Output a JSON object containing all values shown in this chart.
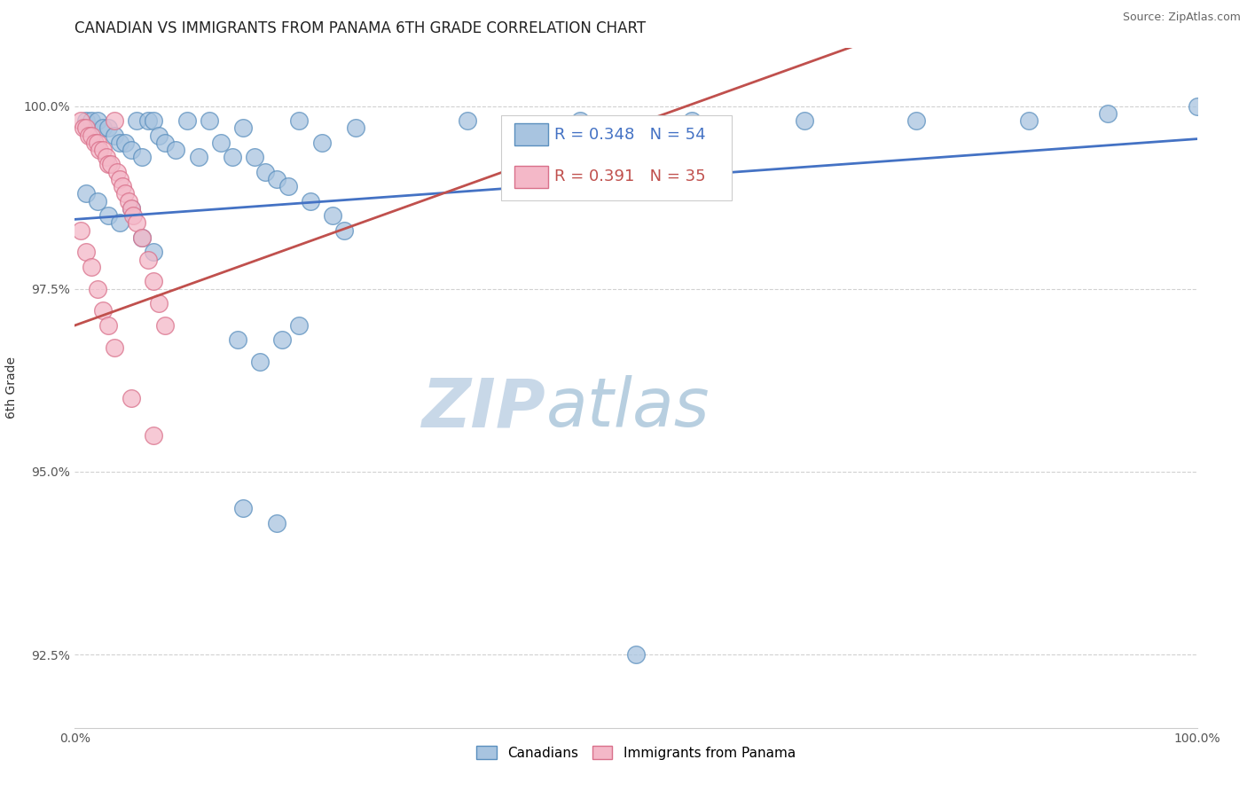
{
  "title": "CANADIAN VS IMMIGRANTS FROM PANAMA 6TH GRADE CORRELATION CHART",
  "source_text": "Source: ZipAtlas.com",
  "ylabel": "6th Grade",
  "watermark_zip": "ZIP",
  "watermark_atlas": "atlas",
  "xlim": [
    0.0,
    100.0
  ],
  "ylim": [
    91.5,
    100.8
  ],
  "yticks": [
    92.5,
    95.0,
    97.5,
    100.0
  ],
  "xticks": [
    0.0,
    100.0
  ],
  "xtick_labels": [
    "0.0%",
    "100.0%"
  ],
  "ytick_labels": [
    "92.5%",
    "95.0%",
    "97.5%",
    "100.0%"
  ],
  "canadian_color": "#a8c4e0",
  "canadian_edge_color": "#5a8fbe",
  "panama_color": "#f4b8c8",
  "panama_edge_color": "#d9708a",
  "trend_blue": "#4472c4",
  "trend_pink": "#c0504d",
  "legend_R_blue": "0.348",
  "legend_N_blue": "54",
  "legend_R_pink": "0.391",
  "legend_N_pink": "35",
  "legend_label_blue": "Canadians",
  "legend_label_pink": "Immigrants from Panama",
  "canadians_x": [
    1.0,
    1.5,
    2.0,
    2.5,
    3.0,
    3.5,
    4.0,
    4.5,
    5.0,
    5.5,
    6.0,
    6.5,
    7.0,
    7.5,
    8.0,
    9.0,
    10.0,
    11.0,
    12.0,
    13.0,
    14.0,
    15.0,
    16.0,
    17.0,
    18.0,
    19.0,
    20.0,
    21.0,
    22.0,
    23.0,
    24.0,
    25.0,
    1.0,
    2.0,
    3.0,
    4.0,
    5.0,
    6.0,
    7.0,
    14.5,
    16.5,
    18.5,
    15.0,
    18.0,
    35.0,
    45.0,
    55.0,
    65.0,
    75.0,
    85.0,
    92.0,
    100.0,
    20.0,
    50.0
  ],
  "canadians_y": [
    99.8,
    99.8,
    99.8,
    99.7,
    99.7,
    99.6,
    99.5,
    99.5,
    99.4,
    99.8,
    99.3,
    99.8,
    99.8,
    99.6,
    99.5,
    99.4,
    99.8,
    99.3,
    99.8,
    99.5,
    99.3,
    99.7,
    99.3,
    99.1,
    99.0,
    98.9,
    99.8,
    98.7,
    99.5,
    98.5,
    98.3,
    99.7,
    98.8,
    98.7,
    98.5,
    98.4,
    98.6,
    98.2,
    98.0,
    96.8,
    96.5,
    96.8,
    94.5,
    94.3,
    99.8,
    99.8,
    99.8,
    99.8,
    99.8,
    99.8,
    99.9,
    100.0,
    97.0,
    92.5
  ],
  "panama_x": [
    0.5,
    0.8,
    1.0,
    1.2,
    1.5,
    1.8,
    2.0,
    2.2,
    2.5,
    2.8,
    3.0,
    3.2,
    3.5,
    3.8,
    4.0,
    4.2,
    4.5,
    4.8,
    5.0,
    5.2,
    5.5,
    6.0,
    6.5,
    7.0,
    7.5,
    8.0,
    0.5,
    1.0,
    1.5,
    2.0,
    2.5,
    3.0,
    3.5,
    5.0,
    7.0
  ],
  "panama_y": [
    99.8,
    99.7,
    99.7,
    99.6,
    99.6,
    99.5,
    99.5,
    99.4,
    99.4,
    99.3,
    99.2,
    99.2,
    99.8,
    99.1,
    99.0,
    98.9,
    98.8,
    98.7,
    98.6,
    98.5,
    98.4,
    98.2,
    97.9,
    97.6,
    97.3,
    97.0,
    98.3,
    98.0,
    97.8,
    97.5,
    97.2,
    97.0,
    96.7,
    96.0,
    95.5
  ],
  "grid_color": "#cccccc",
  "background_color": "#ffffff",
  "title_fontsize": 12,
  "axis_label_fontsize": 10,
  "tick_fontsize": 10,
  "legend_fontsize": 13,
  "watermark_fontsize": 55
}
